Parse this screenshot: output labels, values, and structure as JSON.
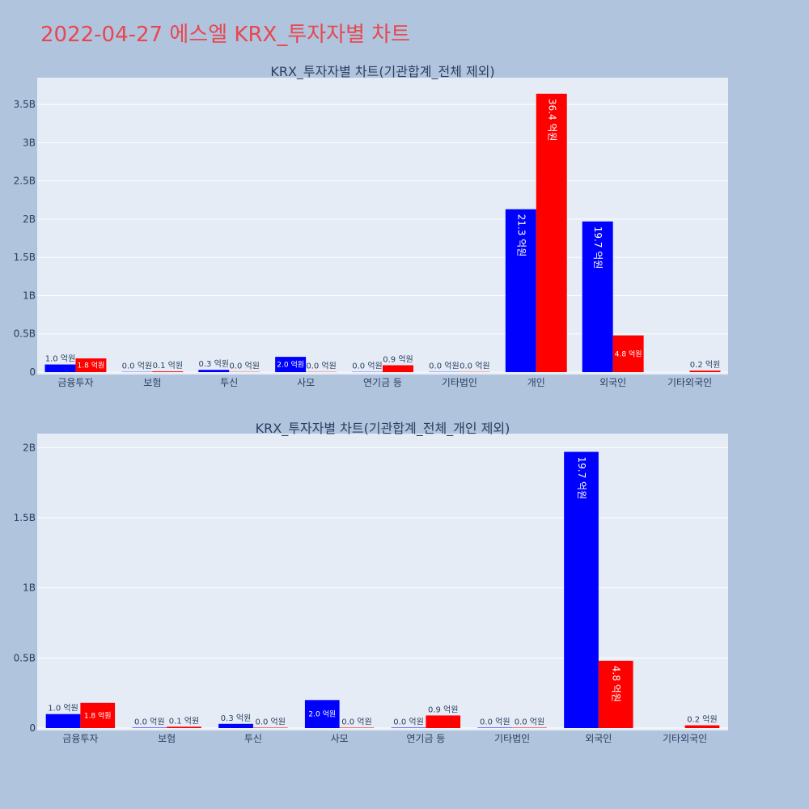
{
  "page_title": "2022-04-27 에스엘 KRX_투자자별 차트",
  "colors": {
    "series_buy": "#0000ff",
    "series_sell": "#ff0000",
    "plot_bg": "#e5ecf6",
    "page_bg": "#b0c4de",
    "title": "#e8474f"
  },
  "chart_data": [
    {
      "type": "bar",
      "title": "KRX_투자자별 차트(기관합계_전체 제외)",
      "categories": [
        "금융투자",
        "보험",
        "투신",
        "사모",
        "연기금 등",
        "기타법인",
        "개인",
        "외국인",
        "기타외국인"
      ],
      "ylim": [
        0,
        3.85
      ],
      "yticks": [
        0,
        0.5,
        1,
        1.5,
        2,
        2.5,
        3,
        3.5
      ],
      "ytick_labels": [
        "0",
        "0.5B",
        "1B",
        "1.5B",
        "2B",
        "2.5B",
        "3B",
        "3.5B"
      ],
      "series": [
        {
          "values": [
            0.1,
            0.003,
            0.03,
            0.2,
            0.003,
            0.003,
            2.13,
            1.97,
            0
          ],
          "labels": [
            "1.0 억원",
            "0.0 억원",
            "0.3 억원",
            "2.0 억원",
            "0.0 억원",
            "0.0 억원",
            "21.3 억원",
            "19.7 억원",
            ""
          ]
        },
        {
          "values": [
            0.18,
            0.01,
            0.003,
            0.003,
            0.09,
            0.003,
            3.64,
            0.48,
            0.02
          ],
          "labels": [
            "1.8 억원",
            "0.1 억원",
            "0.0 억원",
            "0.0 억원",
            "0.9 억원",
            "0.0 억원",
            "36.4 억원",
            "4.8 억원",
            "0.2 억원"
          ]
        }
      ]
    },
    {
      "type": "bar",
      "title": "KRX_투자자별 차트(기관합계_전체_개인 제외)",
      "categories": [
        "금융투자",
        "보험",
        "투신",
        "사모",
        "연기금 등",
        "기타법인",
        "외국인",
        "기타외국인"
      ],
      "ylim": [
        0,
        2.1
      ],
      "yticks": [
        0,
        0.5,
        1,
        1.5,
        2
      ],
      "ytick_labels": [
        "0",
        "0.5B",
        "1B",
        "1.5B",
        "2B"
      ],
      "series": [
        {
          "values": [
            0.1,
            0.003,
            0.03,
            0.2,
            0.003,
            0.003,
            1.97,
            0
          ],
          "labels": [
            "1.0 억원",
            "0.0 억원",
            "0.3 억원",
            "2.0 억원",
            "0.0 억원",
            "0.0 억원",
            "19.7 억원",
            ""
          ]
        },
        {
          "values": [
            0.18,
            0.01,
            0.003,
            0.003,
            0.09,
            0.003,
            0.48,
            0.02
          ],
          "labels": [
            "1.8 억원",
            "0.1 억원",
            "0.0 억원",
            "0.0 억원",
            "0.9 억원",
            "0.0 억원",
            "4.8 억원",
            "0.2 억원"
          ]
        }
      ]
    }
  ]
}
